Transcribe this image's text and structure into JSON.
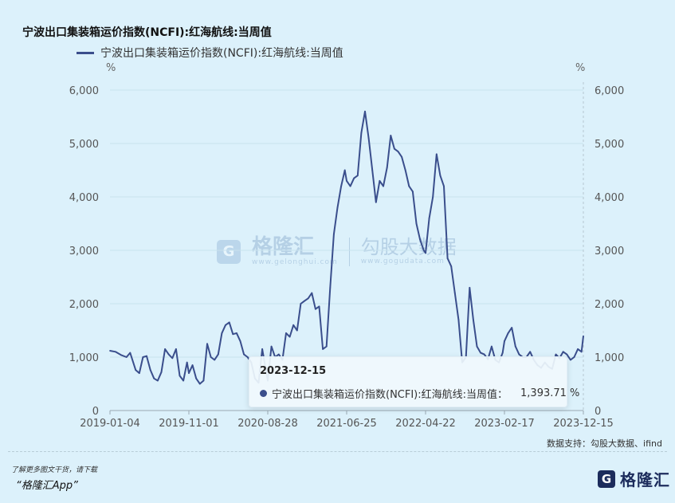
{
  "title": "宁波出口集装箱运价指数(NCFI):红海航线:当周值",
  "legend": "宁波出口集装箱运价指数(NCFI):红海航线:当周值",
  "unit_left": "%",
  "unit_right": "%",
  "tooltip": {
    "date": "2023-12-15",
    "series": "宁波出口集装箱运价指数(NCFI):红海航线:当周值：",
    "value": "1,393.71 %"
  },
  "source": "数据支持：勾股大数据、ifind",
  "promo_line1": "了解更多图文干货，请下载",
  "promo_line2": "“格隆汇App”",
  "watermark": {
    "brand": "格隆汇",
    "brand_sub": "www.gelonghui.com",
    "partner": "勾股大数据",
    "partner_sub": "www.gogudata.com"
  },
  "logo": {
    "glyph": "G",
    "text": "格隆汇"
  },
  "colors": {
    "line": "#3a4e8c",
    "background": "#dcf1fb"
  },
  "chart_data": {
    "type": "line",
    "title": "宁波出口集装箱运价指数(NCFI):红海航线:当周值",
    "ylabel": "%",
    "ylim": [
      0,
      6000
    ],
    "yticks": [
      "0",
      "1,000",
      "2,000",
      "3,000",
      "4,000",
      "5,000",
      "6,000"
    ],
    "xticks": [
      "2019-01-04",
      "2019-11-01",
      "2020-08-28",
      "2021-06-25",
      "2022-04-22",
      "2023-02-17",
      "2023-12-15"
    ],
    "x_start": "2019-01-04",
    "x_end": "2023-12-15",
    "series": [
      {
        "name": "宁波出口集装箱运价指数(NCFI):红海航线:当周值",
        "points": [
          [
            "2019-01-04",
            1120
          ],
          [
            "2019-01-25",
            1100
          ],
          [
            "2019-02-15",
            1040
          ],
          [
            "2019-03-08",
            1000
          ],
          [
            "2019-03-22",
            1080
          ],
          [
            "2019-04-12",
            760
          ],
          [
            "2019-04-26",
            700
          ],
          [
            "2019-05-10",
            1000
          ],
          [
            "2019-05-24",
            1020
          ],
          [
            "2019-06-07",
            760
          ],
          [
            "2019-06-21",
            600
          ],
          [
            "2019-07-05",
            560
          ],
          [
            "2019-07-19",
            720
          ],
          [
            "2019-08-02",
            1150
          ],
          [
            "2019-08-16",
            1050
          ],
          [
            "2019-08-30",
            980
          ],
          [
            "2019-09-13",
            1150
          ],
          [
            "2019-09-27",
            650
          ],
          [
            "2019-10-11",
            560
          ],
          [
            "2019-10-25",
            900
          ],
          [
            "2019-11-01",
            700
          ],
          [
            "2019-11-15",
            850
          ],
          [
            "2019-11-29",
            600
          ],
          [
            "2019-12-13",
            500
          ],
          [
            "2019-12-27",
            560
          ],
          [
            "2020-01-10",
            1250
          ],
          [
            "2020-01-24",
            1000
          ],
          [
            "2020-02-07",
            950
          ],
          [
            "2020-02-21",
            1050
          ],
          [
            "2020-03-06",
            1450
          ],
          [
            "2020-03-20",
            1600
          ],
          [
            "2020-04-03",
            1650
          ],
          [
            "2020-04-17",
            1430
          ],
          [
            "2020-05-01",
            1450
          ],
          [
            "2020-05-15",
            1300
          ],
          [
            "2020-05-29",
            1050
          ],
          [
            "2020-06-12",
            1000
          ],
          [
            "2020-06-26",
            900
          ],
          [
            "2020-07-10",
            600
          ],
          [
            "2020-07-24",
            520
          ],
          [
            "2020-08-07",
            1150
          ],
          [
            "2020-08-21",
            750
          ],
          [
            "2020-08-28",
            560
          ],
          [
            "2020-09-11",
            1200
          ],
          [
            "2020-09-25",
            1000
          ],
          [
            "2020-10-09",
            1050
          ],
          [
            "2020-10-23",
            950
          ],
          [
            "2020-11-06",
            1450
          ],
          [
            "2020-11-20",
            1380
          ],
          [
            "2020-12-04",
            1600
          ],
          [
            "2020-12-18",
            1500
          ],
          [
            "2021-01-01",
            2000
          ],
          [
            "2021-01-15",
            2050
          ],
          [
            "2021-01-29",
            2100
          ],
          [
            "2021-02-12",
            2200
          ],
          [
            "2021-02-26",
            1900
          ],
          [
            "2021-03-12",
            1950
          ],
          [
            "2021-03-26",
            1150
          ],
          [
            "2021-04-09",
            1200
          ],
          [
            "2021-04-23",
            2300
          ],
          [
            "2021-05-07",
            3300
          ],
          [
            "2021-05-21",
            3800
          ],
          [
            "2021-06-04",
            4200
          ],
          [
            "2021-06-18",
            4500
          ],
          [
            "2021-06-25",
            4300
          ],
          [
            "2021-07-09",
            4200
          ],
          [
            "2021-07-23",
            4350
          ],
          [
            "2021-08-06",
            4400
          ],
          [
            "2021-08-20",
            5200
          ],
          [
            "2021-09-03",
            5600
          ],
          [
            "2021-09-17",
            5100
          ],
          [
            "2021-10-01",
            4500
          ],
          [
            "2021-10-15",
            3900
          ],
          [
            "2021-10-29",
            4300
          ],
          [
            "2021-11-12",
            4200
          ],
          [
            "2021-11-26",
            4550
          ],
          [
            "2021-12-10",
            5150
          ],
          [
            "2021-12-24",
            4900
          ],
          [
            "2022-01-07",
            4850
          ],
          [
            "2022-01-21",
            4750
          ],
          [
            "2022-02-04",
            4500
          ],
          [
            "2022-02-18",
            4200
          ],
          [
            "2022-03-04",
            4100
          ],
          [
            "2022-03-18",
            3500
          ],
          [
            "2022-04-01",
            3200
          ],
          [
            "2022-04-15",
            3000
          ],
          [
            "2022-04-22",
            2950
          ],
          [
            "2022-05-06",
            3600
          ],
          [
            "2022-05-20",
            4000
          ],
          [
            "2022-06-03",
            4800
          ],
          [
            "2022-06-17",
            4400
          ],
          [
            "2022-07-01",
            4200
          ],
          [
            "2022-07-15",
            2850
          ],
          [
            "2022-07-29",
            2700
          ],
          [
            "2022-08-12",
            2200
          ],
          [
            "2022-08-26",
            1700
          ],
          [
            "2022-09-09",
            900
          ],
          [
            "2022-09-23",
            1000
          ],
          [
            "2022-10-07",
            2300
          ],
          [
            "2022-10-21",
            1700
          ],
          [
            "2022-11-04",
            1200
          ],
          [
            "2022-11-18",
            1080
          ],
          [
            "2022-12-02",
            1050
          ],
          [
            "2022-12-16",
            960
          ],
          [
            "2022-12-30",
            1200
          ],
          [
            "2023-01-13",
            950
          ],
          [
            "2023-01-27",
            900
          ],
          [
            "2023-02-10",
            1080
          ],
          [
            "2023-02-17",
            1300
          ],
          [
            "2023-03-03",
            1450
          ],
          [
            "2023-03-17",
            1550
          ],
          [
            "2023-03-31",
            1200
          ],
          [
            "2023-04-14",
            1050
          ],
          [
            "2023-04-28",
            1000
          ],
          [
            "2023-05-12",
            1000
          ],
          [
            "2023-05-26",
            1100
          ],
          [
            "2023-06-09",
            950
          ],
          [
            "2023-06-23",
            850
          ],
          [
            "2023-07-07",
            800
          ],
          [
            "2023-07-21",
            900
          ],
          [
            "2023-08-04",
            820
          ],
          [
            "2023-08-18",
            780
          ],
          [
            "2023-09-01",
            1050
          ],
          [
            "2023-09-15",
            980
          ],
          [
            "2023-09-29",
            1100
          ],
          [
            "2023-10-13",
            1050
          ],
          [
            "2023-10-27",
            950
          ],
          [
            "2023-11-10",
            1000
          ],
          [
            "2023-11-24",
            1150
          ],
          [
            "2023-12-08",
            1100
          ],
          [
            "2023-12-15",
            1393.71
          ]
        ]
      }
    ]
  }
}
